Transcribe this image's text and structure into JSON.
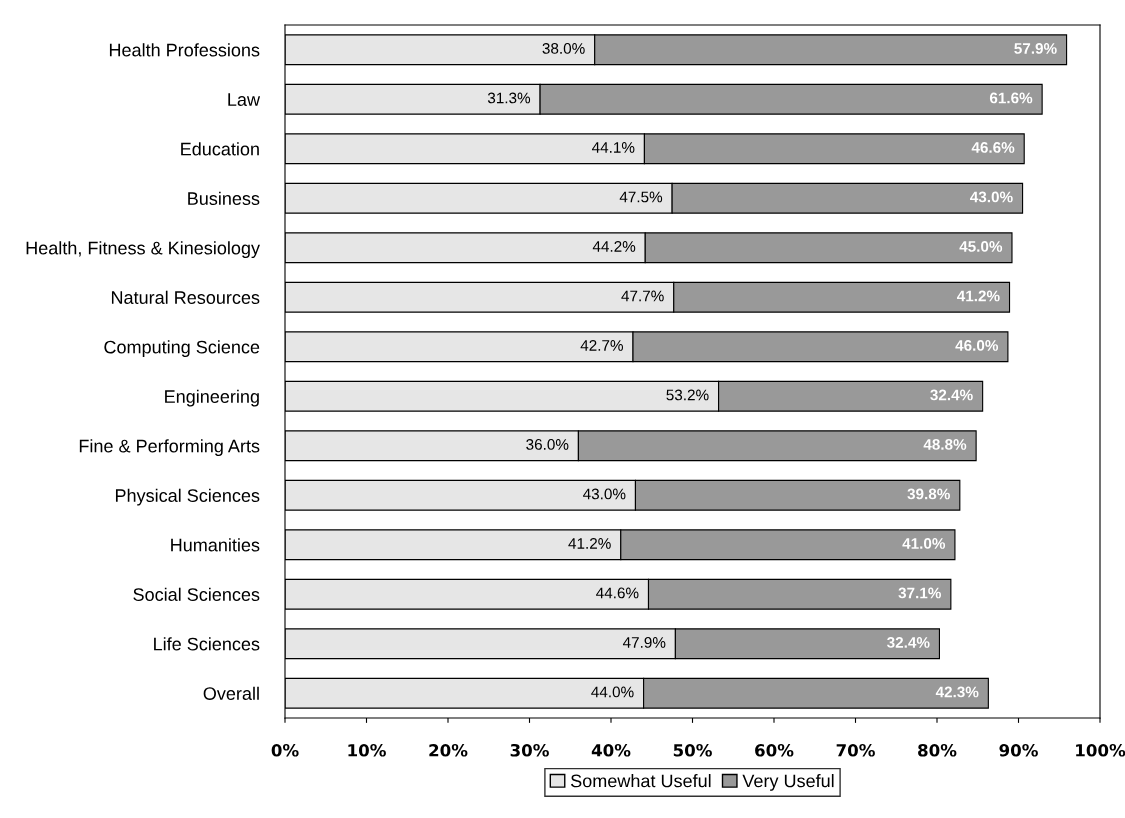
{
  "chart_data": {
    "type": "bar",
    "orientation": "horizontal",
    "stacked": true,
    "categories": [
      "Health Professions",
      "Law",
      "Education",
      "Business",
      "Health, Fitness & Kinesiology",
      "Natural Resources",
      "Computing Science",
      "Engineering",
      "Fine & Performing Arts",
      "Physical Sciences",
      "Humanities",
      "Social Sciences",
      "Life Sciences",
      "Overall"
    ],
    "series": [
      {
        "name": "Somewhat Useful",
        "color": "#e6e6e6",
        "values": [
          38.0,
          31.3,
          44.1,
          47.5,
          44.2,
          47.7,
          42.7,
          53.2,
          36.0,
          43.0,
          41.2,
          44.6,
          47.9,
          44.0
        ],
        "value_labels": [
          "38.0%",
          "31.3%",
          "44.1%",
          "47.5%",
          "44.2%",
          "47.7%",
          "42.7%",
          "53.2%",
          "36.0%",
          "43.0%",
          "41.2%",
          "44.6%",
          "47.9%",
          "44.0%"
        ]
      },
      {
        "name": "Very Useful",
        "color": "#999999",
        "values": [
          57.9,
          61.6,
          46.6,
          43.0,
          45.0,
          41.2,
          46.0,
          32.4,
          48.8,
          39.8,
          41.0,
          37.1,
          32.4,
          42.3
        ],
        "value_labels": [
          "57.9%",
          "61.6%",
          "46.6%",
          "43.0%",
          "45.0%",
          "41.2%",
          "46.0%",
          "32.4%",
          "48.8%",
          "39.8%",
          "41.0%",
          "37.1%",
          "32.4%",
          "42.3%"
        ]
      }
    ],
    "xlim": [
      0,
      100
    ],
    "xticks": [
      {
        "value": 0,
        "label": "0%"
      },
      {
        "value": 10,
        "label": "10%"
      },
      {
        "value": 20,
        "label": "20%"
      },
      {
        "value": 30,
        "label": "30%"
      },
      {
        "value": 40,
        "label": "40%"
      },
      {
        "value": 50,
        "label": "50%"
      },
      {
        "value": 60,
        "label": "60%"
      },
      {
        "value": 70,
        "label": "70%"
      },
      {
        "value": 80,
        "label": "80%"
      },
      {
        "value": 90,
        "label": "90%"
      },
      {
        "value": 100,
        "label": "100%"
      }
    ],
    "grid": false,
    "legend": "bottom"
  }
}
